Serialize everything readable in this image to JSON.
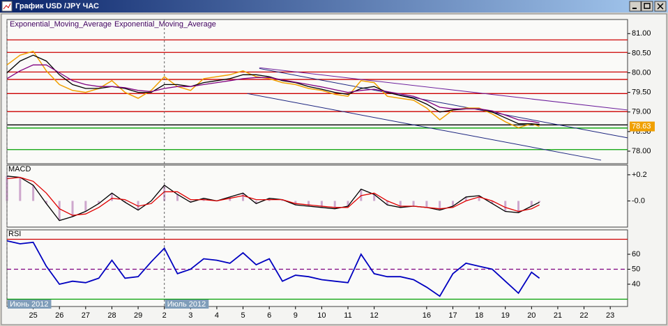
{
  "window": {
    "title": "График USD /JPY ЧАС"
  },
  "chart_data": [
    {
      "type": "line",
      "x": [
        -1,
        -0.5,
        0,
        0.5,
        1,
        1.5,
        2,
        2.5,
        3,
        3.5,
        4,
        4.5,
        5,
        5.5,
        6,
        6.5,
        7,
        7.5,
        8,
        8.5,
        9,
        9.5,
        10,
        10.5,
        11,
        11.5,
        12,
        12.5,
        13,
        13.5,
        14,
        14.5,
        15,
        15.5,
        16,
        16.5,
        17,
        17.5,
        18,
        18.5,
        19,
        19.3
      ],
      "series": [
        {
          "color": "#f0a000",
          "values": [
            80.2,
            80.45,
            80.55,
            80.05,
            79.7,
            79.55,
            79.5,
            79.6,
            79.8,
            79.5,
            79.35,
            79.55,
            79.9,
            79.65,
            79.55,
            79.85,
            79.9,
            79.95,
            80.05,
            79.9,
            79.85,
            79.75,
            79.7,
            79.6,
            79.55,
            79.45,
            79.4,
            79.8,
            79.75,
            79.4,
            79.35,
            79.3,
            79.1,
            78.8,
            79.05,
            79.1,
            79.1,
            78.95,
            78.75,
            78.6,
            78.7,
            78.63
          ]
        },
        {
          "name": "Exponential_Moving_Average",
          "color": "#000000",
          "values": [
            80.0,
            80.3,
            80.45,
            80.3,
            79.95,
            79.7,
            79.6,
            79.6,
            79.65,
            79.6,
            79.5,
            79.5,
            79.7,
            79.7,
            79.65,
            79.75,
            79.8,
            79.85,
            79.95,
            79.95,
            79.9,
            79.8,
            79.75,
            79.65,
            79.58,
            79.5,
            79.45,
            79.6,
            79.65,
            79.5,
            79.42,
            79.35,
            79.2,
            79.0,
            79.05,
            79.08,
            79.08,
            79.0,
            78.85,
            78.7,
            78.7,
            78.68
          ]
        },
        {
          "name": "Exponential_Moving_Average",
          "color": "#800080",
          "values": [
            79.85,
            80.05,
            80.2,
            80.2,
            80.0,
            79.8,
            79.7,
            79.65,
            79.65,
            79.62,
            79.55,
            79.52,
            79.6,
            79.65,
            79.65,
            79.7,
            79.75,
            79.8,
            79.85,
            79.88,
            79.88,
            79.82,
            79.76,
            79.7,
            79.64,
            79.57,
            79.5,
            79.55,
            79.58,
            79.52,
            79.46,
            79.4,
            79.28,
            79.12,
            79.08,
            79.08,
            79.08,
            79.03,
            78.92,
            78.8,
            78.76,
            78.72
          ]
        }
      ],
      "hlines": [
        {
          "value": 80.84,
          "color": "#cc0000"
        },
        {
          "value": 80.52,
          "color": "#cc0000"
        },
        {
          "value": 80.02,
          "color": "#cc0000"
        },
        {
          "value": 79.83,
          "color": "#cc0000"
        },
        {
          "value": 79.47,
          "color": "#cc0000"
        },
        {
          "value": 79.01,
          "color": "#cc0000"
        },
        {
          "value": 78.67,
          "color": "#000000"
        },
        {
          "value": 78.59,
          "color": "#00a000"
        },
        {
          "value": 78.04,
          "color": "#00a000"
        }
      ],
      "trendlines": [
        {
          "x": [
            8.62,
            22.66
          ],
          "y": [
            80.13,
            79.05
          ],
          "color": "#6a1b9a"
        },
        {
          "x": [
            8.62,
            22.66
          ],
          "y": [
            80.11,
            78.34
          ],
          "color": "#1a237e"
        },
        {
          "x": [
            8.16,
            21.65
          ],
          "y": [
            79.47,
            77.77
          ],
          "color": "#1a237e"
        }
      ],
      "last_value": 78.63,
      "xlim": [
        -1,
        22.66
      ],
      "ylim": [
        77.68,
        81.36
      ],
      "yticks": [
        {
          "value": 78,
          "label": "78.00"
        },
        {
          "value": 78.5,
          "label": "78.50"
        },
        {
          "value": 79,
          "label": "79.00"
        },
        {
          "value": 79.5,
          "label": "79.50"
        },
        {
          "value": 80,
          "label": "80.00"
        },
        {
          "value": 80.5,
          "label": "80.50"
        },
        {
          "value": 81,
          "label": "81.00"
        }
      ]
    },
    {
      "type": "line",
      "title": "MACD",
      "histogram": true,
      "x": [
        -1,
        -0.5,
        0,
        0.5,
        1,
        1.5,
        2,
        2.5,
        3,
        3.5,
        4,
        4.5,
        5,
        5.5,
        6,
        6.5,
        7,
        7.5,
        8,
        8.5,
        9,
        9.5,
        10,
        10.5,
        11,
        11.5,
        12,
        12.5,
        13,
        13.5,
        14,
        14.5,
        15,
        15.5,
        16,
        16.5,
        17,
        17.5,
        18,
        18.5,
        19,
        19.3
      ],
      "series": [
        {
          "color": "#000000",
          "values": [
            0.19,
            0.18,
            0.12,
            -0.02,
            -0.15,
            -0.12,
            -0.08,
            -0.02,
            0.06,
            -0.01,
            -0.07,
            0.0,
            0.12,
            0.05,
            -0.01,
            0.02,
            0.0,
            0.03,
            0.06,
            -0.02,
            0.02,
            0.01,
            -0.03,
            -0.04,
            -0.05,
            -0.06,
            -0.04,
            0.09,
            0.05,
            -0.03,
            -0.05,
            -0.04,
            -0.05,
            -0.07,
            -0.04,
            0.03,
            0.04,
            -0.02,
            -0.08,
            -0.09,
            -0.04,
            -0.01
          ]
        },
        {
          "color": "#e00000",
          "values": [
            0.17,
            0.18,
            0.15,
            0.06,
            -0.06,
            -0.11,
            -0.1,
            -0.05,
            0.02,
            0.01,
            -0.04,
            -0.02,
            0.07,
            0.07,
            0.01,
            0.01,
            0.0,
            0.02,
            0.04,
            0.01,
            0.01,
            0.01,
            -0.02,
            -0.03,
            -0.04,
            -0.05,
            -0.05,
            0.04,
            0.06,
            0.0,
            -0.04,
            -0.04,
            -0.05,
            -0.06,
            -0.05,
            0.0,
            0.03,
            0.0,
            -0.05,
            -0.08,
            -0.06,
            -0.03
          ]
        }
      ],
      "xlim": [
        -1,
        22.66
      ],
      "ylim": [
        -0.2,
        0.274
      ],
      "yticks": [
        {
          "value": 0.2,
          "label": "+0.2"
        },
        {
          "value": 0,
          "label": "-0.0"
        }
      ]
    },
    {
      "type": "line",
      "title": "RSI",
      "x": [
        -1,
        -0.5,
        0,
        0.5,
        1,
        1.5,
        2,
        2.5,
        3,
        3.5,
        4,
        4.5,
        5,
        5.5,
        6,
        6.5,
        7,
        7.5,
        8,
        8.5,
        9,
        9.5,
        10,
        10.5,
        11,
        11.5,
        12,
        12.5,
        13,
        13.5,
        14,
        14.5,
        15,
        15.5,
        16,
        16.5,
        17,
        17.5,
        18,
        18.5,
        19,
        19.3
      ],
      "series": [
        {
          "color": "#0000c0",
          "values": [
            69,
            67,
            68,
            52,
            40,
            42,
            41,
            44,
            56,
            44,
            45,
            55,
            64,
            47,
            50,
            57,
            56,
            54,
            61,
            53,
            57,
            42,
            46,
            45,
            43,
            42,
            41,
            60,
            47,
            45,
            45,
            43,
            38,
            32,
            47,
            54,
            52,
            50,
            42,
            34,
            48,
            44
          ]
        }
      ],
      "hlines": [
        {
          "value": 70,
          "color": "#cc0000"
        },
        {
          "value": 50,
          "color": "#800080",
          "dash": true
        },
        {
          "value": 30,
          "color": "#00a000"
        }
      ],
      "xlim": [
        -1,
        22.66
      ],
      "ylim": [
        25.1,
        76.3
      ],
      "yticks": [
        40,
        50,
        60
      ],
      "xticks": [
        {
          "value": 0,
          "label": "25"
        },
        {
          "value": 1,
          "label": "26"
        },
        {
          "value": 2,
          "label": "27"
        },
        {
          "value": 3,
          "label": "28"
        },
        {
          "value": 4,
          "label": "29"
        },
        {
          "value": 5,
          "label": "2"
        },
        {
          "value": 6,
          "label": "3"
        },
        {
          "value": 7,
          "label": "4"
        },
        {
          "value": 8,
          "label": "5"
        },
        {
          "value": 9,
          "label": "6"
        },
        {
          "value": 10,
          "label": "9"
        },
        {
          "value": 11,
          "label": "10"
        },
        {
          "value": 12,
          "label": "11"
        },
        {
          "value": 13,
          "label": "12"
        },
        {
          "value": 15,
          "label": "16"
        },
        {
          "value": 16,
          "label": "17"
        },
        {
          "value": 17,
          "label": "18"
        },
        {
          "value": 18,
          "label": "19"
        },
        {
          "value": 19,
          "label": "20"
        },
        {
          "value": 20,
          "label": "21"
        },
        {
          "value": 21,
          "label": "22"
        },
        {
          "value": 22,
          "label": "23"
        }
      ],
      "months": [
        {
          "value": -1,
          "label": "Июнь 2012"
        },
        {
          "value": 5,
          "label": "Июль 2012"
        }
      ]
    }
  ]
}
